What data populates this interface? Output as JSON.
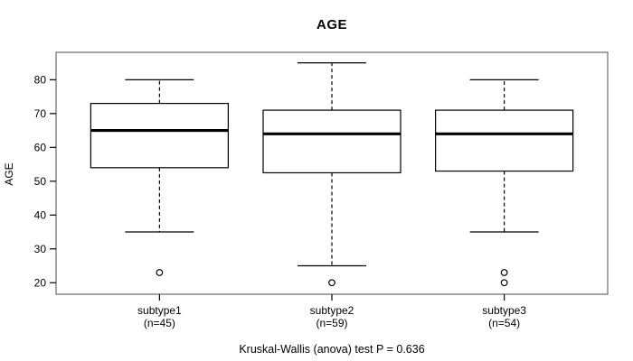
{
  "header": {
    "title": "AGE"
  },
  "footer": {
    "annotation": "Kruskal-Wallis (anova) test P = 0.636"
  },
  "chart_data": {
    "type": "boxplot",
    "title": "AGE",
    "xlabel": "",
    "ylabel": "AGE",
    "ylim": [
      16.6,
      88.1
    ],
    "yticks": [
      20,
      30,
      40,
      50,
      60,
      70,
      80
    ],
    "grid": false,
    "legend": null,
    "categories": [
      "subtype1",
      "subtype2",
      "subtype3"
    ],
    "category_sublabels": [
      "(n=45)",
      "(n=59)",
      "(n=54)"
    ],
    "series": [
      {
        "name": "subtype1",
        "n": 45,
        "whisker_low": 35,
        "q1": 54,
        "median": 65,
        "q3": 73,
        "whisker_high": 80,
        "outliers": [
          23
        ]
      },
      {
        "name": "subtype2",
        "n": 59,
        "whisker_low": 25,
        "q1": 52.5,
        "median": 64,
        "q3": 71,
        "whisker_high": 85,
        "outliers": [
          20
        ]
      },
      {
        "name": "subtype3",
        "n": 54,
        "whisker_low": 35,
        "q1": 53,
        "median": 64,
        "q3": 71,
        "whisker_high": 80,
        "outliers": [
          23,
          20
        ]
      }
    ],
    "colors": {
      "line": "#000000",
      "median": "#000000",
      "box_fill": "#ffffff",
      "plot_border": "#878787",
      "background": "#ffffff",
      "text": "#000000"
    }
  }
}
